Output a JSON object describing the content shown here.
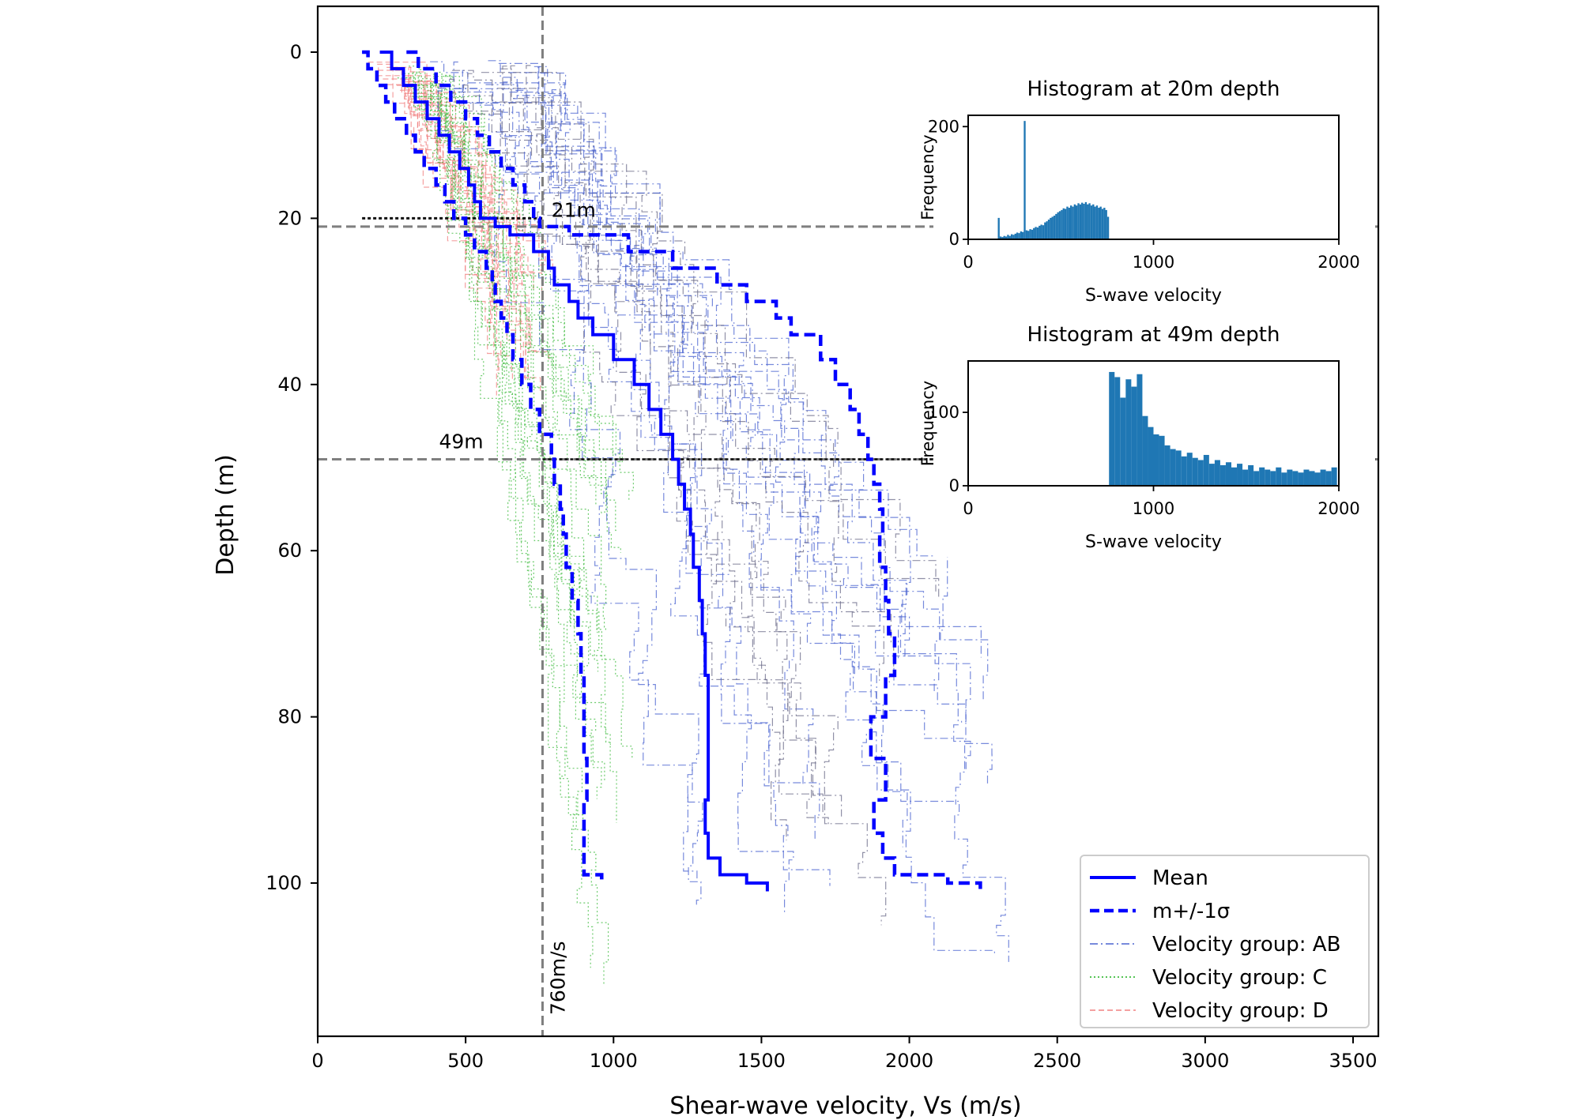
{
  "chart_data": {
    "type": "line",
    "xlabel": "Shear-wave velocity, Vs (m/s)",
    "ylabel": "Depth (m)",
    "xlim": [
      0,
      4000
    ],
    "ylim": [
      119,
      -5
    ],
    "y_inverted": true,
    "xticks": [
      "0",
      "500",
      "1000",
      "1500",
      "2000",
      "2500",
      "3000",
      "3500"
    ],
    "yticks": [
      "0",
      "20",
      "40",
      "60",
      "80",
      "100"
    ],
    "grid": false,
    "legend_position": "lower-right",
    "series": [
      {
        "name": "Mean",
        "style": "solid",
        "color": "#0000ff",
        "depth": [
          0,
          2,
          4,
          6,
          8,
          10,
          12,
          14,
          16,
          18,
          20,
          21,
          22,
          24,
          26,
          28,
          30,
          32,
          34,
          37,
          40,
          43,
          46,
          49,
          52,
          55,
          58,
          62,
          66,
          70,
          75,
          80,
          85,
          90,
          94,
          97,
          99,
          100,
          101
        ],
        "vs": [
          210,
          250,
          290,
          330,
          370,
          410,
          445,
          480,
          510,
          530,
          550,
          600,
          650,
          730,
          780,
          800,
          850,
          880,
          930,
          1000,
          1070,
          1120,
          1160,
          1200,
          1220,
          1240,
          1260,
          1270,
          1290,
          1300,
          1310,
          1320,
          1320,
          1320,
          1310,
          1320,
          1360,
          1450,
          1520
        ]
      },
      {
        "name": "m+/-1σ (lower)",
        "style": "dashed",
        "color": "#0000ff",
        "depth": [
          0,
          2,
          4,
          6,
          8,
          10,
          12,
          14,
          16,
          18,
          20,
          22,
          24,
          26,
          28,
          30,
          32,
          34,
          37,
          40,
          43,
          46,
          49,
          52,
          55,
          58,
          62,
          66,
          70,
          75,
          80,
          85,
          90,
          94,
          97,
          99,
          100
        ],
        "vs": [
          150,
          170,
          200,
          230,
          260,
          300,
          330,
          360,
          400,
          430,
          460,
          500,
          530,
          570,
          590,
          600,
          620,
          640,
          660,
          690,
          720,
          750,
          790,
          800,
          820,
          830,
          840,
          860,
          880,
          890,
          900,
          900,
          910,
          900,
          900,
          900,
          960
        ]
      },
      {
        "name": "m+/-1σ (upper)",
        "style": "dashed",
        "color": "#0000ff",
        "depth": [
          0,
          2,
          4,
          6,
          8,
          10,
          12,
          14,
          16,
          18,
          20,
          21,
          22,
          24,
          26,
          28,
          30,
          32,
          34,
          37,
          40,
          43,
          46,
          49,
          52,
          55,
          58,
          62,
          66,
          70,
          75,
          80,
          85,
          90,
          94,
          97,
          99,
          100,
          101
        ],
        "vs": [
          300,
          340,
          400,
          450,
          500,
          540,
          580,
          620,
          660,
          700,
          730,
          750,
          850,
          1050,
          1200,
          1350,
          1450,
          1550,
          1600,
          1700,
          1750,
          1800,
          1830,
          1860,
          1880,
          1900,
          1910,
          1900,
          1920,
          1930,
          1950,
          1920,
          1870,
          1920,
          1880,
          1910,
          1950,
          2130,
          2240
        ]
      }
    ],
    "profile_groups": [
      {
        "name": "Velocity group: AB",
        "style": "dashdot",
        "color": "#4a63d0"
      },
      {
        "name": "Velocity group: C",
        "style": "dotted",
        "color": "#3dbb3d"
      },
      {
        "name": "Velocity group: D",
        "style": "dashed",
        "color": "#f08080"
      }
    ],
    "legend": [
      "Mean",
      "m+/-1σ",
      "Velocity group: AB",
      "Velocity group: C",
      "Velocity group: D"
    ],
    "reference_lines": [
      {
        "axis": "x",
        "value": 760,
        "label": "760m/s"
      },
      {
        "axis": "y",
        "value": 21,
        "label": "21m"
      },
      {
        "axis": "y",
        "value": 49,
        "label": "49m"
      }
    ],
    "insets": [
      {
        "type": "histogram",
        "title": "Histogram at 20m depth",
        "xlabel": "S-wave velocity",
        "ylabel": "Frequency",
        "xlim": [
          0,
          2000
        ],
        "ylim": [
          0,
          220
        ],
        "xticks": [
          "0",
          "1000",
          "2000"
        ],
        "yticks": [
          "0",
          "200"
        ],
        "color": "#1f77b4",
        "bin_width": 10,
        "bins_start": [
          160,
          170,
          180,
          190,
          200,
          210,
          220,
          230,
          240,
          250,
          260,
          270,
          280,
          290,
          300,
          310,
          320,
          330,
          340,
          350,
          360,
          370,
          380,
          390,
          400,
          410,
          420,
          430,
          440,
          450,
          460,
          470,
          480,
          490,
          500,
          510,
          520,
          530,
          540,
          550,
          560,
          570,
          580,
          590,
          600,
          610,
          620,
          630,
          640,
          650,
          660,
          670,
          680,
          690,
          700,
          710,
          720,
          730,
          740,
          750
        ],
        "counts": [
          38,
          5,
          4,
          6,
          5,
          8,
          6,
          9,
          8,
          10,
          12,
          11,
          14,
          13,
          210,
          16,
          15,
          18,
          17,
          20,
          22,
          21,
          24,
          26,
          25,
          30,
          32,
          35,
          38,
          40,
          42,
          45,
          48,
          50,
          52,
          55,
          54,
          58,
          56,
          60,
          58,
          62,
          60,
          64,
          62,
          65,
          63,
          66,
          62,
          64,
          60,
          62,
          58,
          60,
          56,
          58,
          54,
          56,
          52,
          40
        ]
      },
      {
        "type": "histogram",
        "title": "Histogram at 49m depth",
        "xlabel": "S-wave velocity",
        "ylabel": "Frequency",
        "xlim": [
          0,
          2000
        ],
        "ylim": [
          0,
          170
        ],
        "xticks": [
          "0",
          "1000",
          "2000"
        ],
        "yticks": [
          "0",
          "100"
        ],
        "color": "#1f77b4",
        "bin_width": 30,
        "bins_start": [
          760,
          790,
          820,
          850,
          880,
          910,
          940,
          970,
          1000,
          1030,
          1060,
          1090,
          1120,
          1150,
          1180,
          1210,
          1240,
          1270,
          1300,
          1330,
          1360,
          1390,
          1420,
          1450,
          1480,
          1510,
          1540,
          1570,
          1600,
          1630,
          1660,
          1690,
          1720,
          1750,
          1780,
          1810,
          1840,
          1870,
          1900,
          1930,
          1960
        ],
        "counts": [
          155,
          148,
          120,
          145,
          135,
          152,
          95,
          80,
          70,
          68,
          55,
          50,
          48,
          40,
          45,
          38,
          35,
          42,
          30,
          35,
          28,
          32,
          25,
          30,
          22,
          28,
          20,
          25,
          22,
          20,
          25,
          18,
          22,
          20,
          18,
          22,
          20,
          18,
          22,
          20,
          25
        ]
      }
    ]
  }
}
